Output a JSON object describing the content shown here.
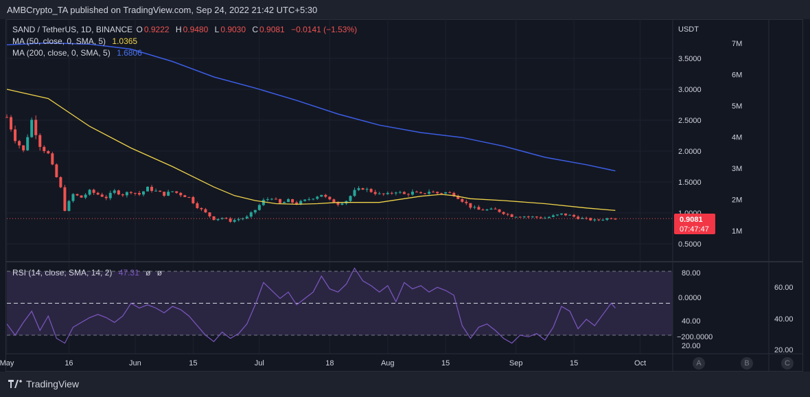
{
  "header": {
    "publish_text": "AMBCrypto_TA published on TradingView.com, Sep 24, 2022 21:42 UTC+5:30"
  },
  "legend": {
    "symbol": "SAND / TetherUS, 1D, BINANCE",
    "o_label": "O",
    "o_value": "0.9222",
    "h_label": "H",
    "h_value": "0.9480",
    "l_label": "L",
    "l_value": "0.9030",
    "c_label": "C",
    "c_value": "0.9081",
    "change": "−0.0141 (−1.53%)",
    "ma50_label": "MA (50, close, 0, SMA, 5)",
    "ma50_value": "1.0365",
    "ma200_label": "MA (200, close, 0, SMA, 5)",
    "ma200_value": "1.6806",
    "rsi_label": "RSI (14, close, SMA, 14, 2)",
    "rsi_value": "47.31",
    "rsi_extra1": "ø",
    "rsi_extra2": "ø"
  },
  "price_axis": {
    "currency": "USDT",
    "ticks": [
      "3.5000",
      "3.0000",
      "2.5000",
      "2.0000",
      "1.5000",
      "1.0000",
      "0.5000"
    ],
    "volume_ticks": [
      "7M",
      "6M",
      "5M",
      "4M",
      "3M",
      "2M",
      "1M"
    ],
    "last_price": "0.9081",
    "countdown": "07:47:47"
  },
  "rsi_axis": {
    "ticks_left": [
      "80.00",
      "0.0000",
      "40.00",
      "−200.0000",
      "20.00"
    ],
    "ticks_right": [
      "60.00",
      "40.00",
      "20.00"
    ],
    "band_ticks": [
      "60.00"
    ]
  },
  "time_axis": {
    "labels": [
      "May",
      "16",
      "Jun",
      "15",
      "Jul",
      "18",
      "Aug",
      "15",
      "Sep",
      "15",
      "Oct"
    ]
  },
  "footer": {
    "brand": "TradingView",
    "scale_buttons": [
      "A",
      "B",
      "C"
    ]
  },
  "colors": {
    "up": "#26a69a",
    "down": "#ef5350",
    "ma50": "#f0d44a",
    "ma200": "#3c5ee6",
    "rsi": "#7e57c2",
    "rsi_band": "#2a2642",
    "last_price_bg": "#f23645"
  },
  "chart_data": {
    "type": "candlestick",
    "title": "SAND / TetherUS, 1D, BINANCE",
    "x_range": [
      "2022-05-01",
      "2022-10-05"
    ],
    "ylim": [
      0.2,
      4.1
    ],
    "anchors_close": [
      [
        0,
        2.55
      ],
      [
        2,
        2.2
      ],
      [
        4,
        2.0
      ],
      [
        6,
        2.5
      ],
      [
        8,
        2.1
      ],
      [
        10,
        1.95
      ],
      [
        11,
        1.75
      ],
      [
        13,
        1.4
      ],
      [
        14,
        1.05
      ],
      [
        16,
        1.3
      ],
      [
        18,
        1.25
      ],
      [
        20,
        1.35
      ],
      [
        22,
        1.3
      ],
      [
        24,
        1.25
      ],
      [
        26,
        1.35
      ],
      [
        28,
        1.3
      ],
      [
        30,
        1.35
      ],
      [
        32,
        1.3
      ],
      [
        34,
        1.4
      ],
      [
        36,
        1.35
      ],
      [
        38,
        1.3
      ],
      [
        40,
        1.35
      ],
      [
        42,
        1.3
      ],
      [
        44,
        1.25
      ],
      [
        46,
        1.1
      ],
      [
        48,
        1.0
      ],
      [
        50,
        0.9
      ],
      [
        52,
        0.92
      ],
      [
        54,
        0.87
      ],
      [
        56,
        0.9
      ],
      [
        58,
        0.93
      ],
      [
        60,
        1.05
      ],
      [
        62,
        1.2
      ],
      [
        64,
        1.25
      ],
      [
        66,
        1.15
      ],
      [
        68,
        1.2
      ],
      [
        70,
        1.15
      ],
      [
        72,
        1.2
      ],
      [
        74,
        1.25
      ],
      [
        76,
        1.3
      ],
      [
        78,
        1.2
      ],
      [
        80,
        1.15
      ],
      [
        82,
        1.2
      ],
      [
        84,
        1.35
      ],
      [
        86,
        1.4
      ],
      [
        88,
        1.35
      ],
      [
        90,
        1.3
      ],
      [
        92,
        1.3
      ],
      [
        94,
        1.35
      ],
      [
        96,
        1.3
      ],
      [
        98,
        1.33
      ],
      [
        100,
        1.3
      ],
      [
        102,
        1.35
      ],
      [
        104,
        1.32
      ],
      [
        106,
        1.33
      ],
      [
        108,
        1.3
      ],
      [
        110,
        1.2
      ],
      [
        112,
        1.1
      ],
      [
        114,
        1.05
      ],
      [
        116,
        1.05
      ],
      [
        118,
        1.05
      ],
      [
        120,
        1.0
      ],
      [
        122,
        0.95
      ],
      [
        124,
        0.95
      ],
      [
        126,
        0.94
      ],
      [
        128,
        0.93
      ],
      [
        130,
        0.92
      ],
      [
        132,
        0.95
      ],
      [
        134,
        0.98
      ],
      [
        136,
        0.96
      ],
      [
        138,
        0.92
      ],
      [
        140,
        0.9
      ],
      [
        142,
        0.88
      ],
      [
        144,
        0.9
      ],
      [
        146,
        0.92
      ],
      [
        147,
        0.91
      ]
    ],
    "ma50": [
      [
        0,
        3.0
      ],
      [
        10,
        2.85
      ],
      [
        20,
        2.4
      ],
      [
        30,
        2.05
      ],
      [
        40,
        1.75
      ],
      [
        50,
        1.42
      ],
      [
        55,
        1.28
      ],
      [
        60,
        1.2
      ],
      [
        65,
        1.15
      ],
      [
        70,
        1.14
      ],
      [
        75,
        1.15
      ],
      [
        80,
        1.17
      ],
      [
        85,
        1.17
      ],
      [
        90,
        1.17
      ],
      [
        95,
        1.22
      ],
      [
        100,
        1.27
      ],
      [
        105,
        1.3
      ],
      [
        108,
        1.28
      ],
      [
        112,
        1.23
      ],
      [
        120,
        1.2
      ],
      [
        130,
        1.15
      ],
      [
        140,
        1.08
      ],
      [
        147,
        1.04
      ]
    ],
    "ma200": [
      [
        0,
        3.72
      ],
      [
        10,
        3.75
      ],
      [
        20,
        3.73
      ],
      [
        30,
        3.65
      ],
      [
        40,
        3.45
      ],
      [
        50,
        3.2
      ],
      [
        60,
        3.02
      ],
      [
        70,
        2.82
      ],
      [
        80,
        2.6
      ],
      [
        90,
        2.42
      ],
      [
        100,
        2.3
      ],
      [
        110,
        2.22
      ],
      [
        120,
        2.08
      ],
      [
        130,
        1.9
      ],
      [
        140,
        1.78
      ],
      [
        147,
        1.68
      ]
    ],
    "rsi": [
      [
        0,
        37
      ],
      [
        2,
        30
      ],
      [
        4,
        38
      ],
      [
        6,
        45
      ],
      [
        8,
        33
      ],
      [
        10,
        42
      ],
      [
        12,
        28
      ],
      [
        14,
        25
      ],
      [
        16,
        35
      ],
      [
        18,
        38
      ],
      [
        20,
        41
      ],
      [
        22,
        43
      ],
      [
        24,
        41
      ],
      [
        26,
        38
      ],
      [
        28,
        42
      ],
      [
        30,
        50
      ],
      [
        32,
        47
      ],
      [
        34,
        49
      ],
      [
        36,
        47
      ],
      [
        38,
        44
      ],
      [
        40,
        48
      ],
      [
        42,
        46
      ],
      [
        44,
        42
      ],
      [
        46,
        36
      ],
      [
        48,
        30
      ],
      [
        50,
        26
      ],
      [
        52,
        32
      ],
      [
        54,
        28
      ],
      [
        56,
        31
      ],
      [
        58,
        37
      ],
      [
        60,
        49
      ],
      [
        62,
        63
      ],
      [
        64,
        58
      ],
      [
        66,
        53
      ],
      [
        68,
        57
      ],
      [
        70,
        49
      ],
      [
        72,
        53
      ],
      [
        74,
        57
      ],
      [
        76,
        67
      ],
      [
        78,
        59
      ],
      [
        80,
        57
      ],
      [
        82,
        62
      ],
      [
        84,
        72
      ],
      [
        86,
        64
      ],
      [
        88,
        61
      ],
      [
        90,
        57
      ],
      [
        92,
        61
      ],
      [
        94,
        51
      ],
      [
        96,
        63
      ],
      [
        98,
        59
      ],
      [
        100,
        61
      ],
      [
        102,
        57
      ],
      [
        104,
        60
      ],
      [
        106,
        58
      ],
      [
        108,
        55
      ],
      [
        110,
        36
      ],
      [
        112,
        28
      ],
      [
        114,
        35
      ],
      [
        116,
        37
      ],
      [
        118,
        33
      ],
      [
        120,
        28
      ],
      [
        122,
        25
      ],
      [
        124,
        30
      ],
      [
        126,
        29
      ],
      [
        128,
        31
      ],
      [
        130,
        27
      ],
      [
        132,
        35
      ],
      [
        134,
        48
      ],
      [
        136,
        45
      ],
      [
        138,
        34
      ],
      [
        140,
        40
      ],
      [
        142,
        36
      ],
      [
        144,
        43
      ],
      [
        146,
        50
      ],
      [
        147,
        47
      ]
    ],
    "rsi_band": [
      30,
      70
    ],
    "rsi_mid": 50
  }
}
